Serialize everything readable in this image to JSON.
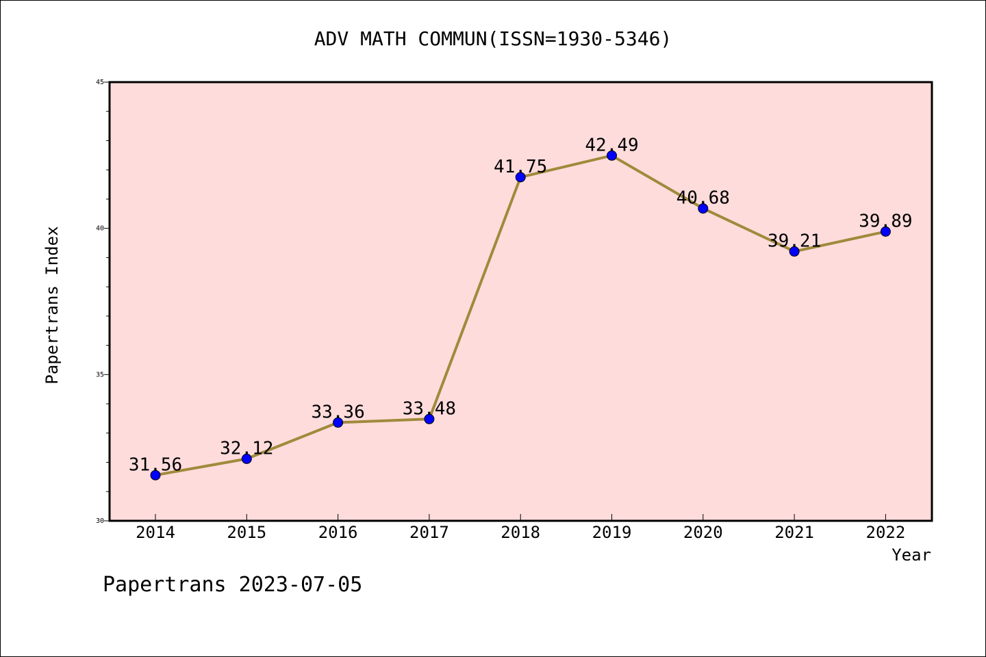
{
  "chart_data": {
    "type": "line",
    "title": "ADV MATH COMMUN(ISSN=1930-5346)",
    "xlabel": "Year",
    "ylabel": "Papertrans Index",
    "categories": [
      "2014",
      "2015",
      "2016",
      "2017",
      "2018",
      "2019",
      "2020",
      "2021",
      "2022"
    ],
    "series": [
      {
        "values": [
          31.56,
          32.12,
          33.36,
          33.48,
          41.75,
          42.49,
          40.68,
          39.21,
          39.89
        ]
      }
    ],
    "data_labels": [
      "31.56",
      "32.12",
      "33.36",
      "33.48",
      "41.75",
      "42.49",
      "40.68",
      "39.21",
      "39.89"
    ],
    "ylim": [
      30,
      45
    ],
    "yticks": [
      30,
      35,
      40,
      45
    ],
    "grid": false,
    "legend": "none",
    "colors": {
      "plot_background": "#ffdcdc",
      "line": "#a08a3c",
      "marker": "#0000ff"
    }
  },
  "footer": {
    "text": "Papertrans 2023-07-05"
  }
}
